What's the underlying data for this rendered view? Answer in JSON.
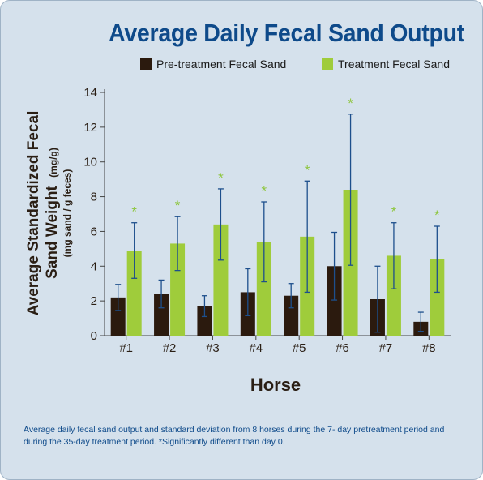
{
  "title": "Average Daily Fecal Sand Output",
  "legend": {
    "pre": "Pre-treatment Fecal Sand",
    "treat": "Treatment Fecal Sand"
  },
  "ylabel_line1": "Average Standardized Fecal",
  "ylabel_line2": "Sand Weight",
  "ylabel_unit1": "(mg/g)",
  "ylabel_unit2": "(mg sand / g feces)",
  "xlabel": "Horse",
  "caption": "Average daily fecal sand output and standard deviation from 8 horses during the 7- day pretreatment period and during the 35-day treatment period. *Significantly different than day 0.",
  "colors": {
    "pre": "#2b1a0e",
    "treat": "#9fcc3b",
    "errorbar": "#1d4f8c",
    "star": "#8ec63f",
    "title": "#0e4a8a"
  },
  "chart_data": {
    "type": "bar",
    "categories": [
      "#1",
      "#2",
      "#3",
      "#4",
      "#5",
      "#6",
      "#7",
      "#8"
    ],
    "series": [
      {
        "name": "Pre-treatment Fecal Sand",
        "values": [
          2.2,
          2.4,
          1.7,
          2.5,
          2.3,
          4.0,
          2.1,
          0.8
        ],
        "error": [
          0.75,
          0.8,
          0.6,
          1.35,
          0.7,
          1.95,
          1.9,
          0.55
        ]
      },
      {
        "name": "Treatment Fecal Sand",
        "values": [
          4.9,
          5.3,
          6.4,
          5.4,
          5.7,
          8.4,
          4.6,
          4.4
        ],
        "error": [
          1.6,
          1.55,
          2.05,
          2.3,
          3.2,
          4.35,
          1.9,
          1.9
        ],
        "significance_marker": "*"
      }
    ],
    "ylim": [
      0,
      14
    ],
    "yticks": [
      0,
      2,
      4,
      6,
      8,
      10,
      12,
      14
    ],
    "xlabel": "Horse",
    "ylabel": "Average Standardized Fecal Sand Weight (mg/g) (mg sand / g feces)",
    "grid": false,
    "legend_position": "top"
  }
}
